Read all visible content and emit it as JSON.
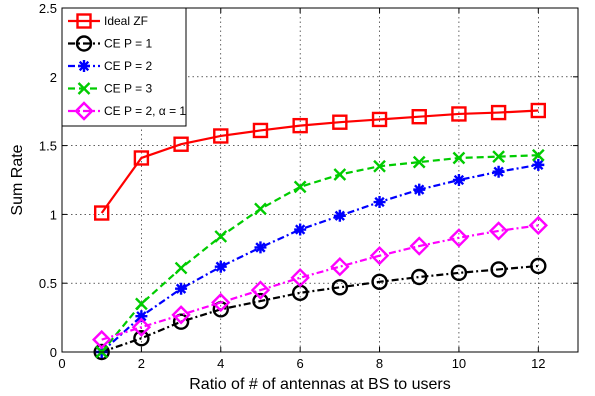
{
  "chart_data": {
    "type": "line",
    "xlabel": "Ratio of # of antennas at BS to users",
    "ylabel": "Sum Rate",
    "xlim": [
      0,
      13
    ],
    "ylim": [
      0,
      2.5
    ],
    "xticks": [
      0,
      2,
      4,
      6,
      8,
      10,
      12
    ],
    "yticks": [
      0,
      0.5,
      1,
      1.5,
      2,
      2.5
    ],
    "xtick_labels": [
      "0",
      "2",
      "4",
      "6",
      "8",
      "10",
      "12"
    ],
    "ytick_labels": [
      "0",
      "0.5",
      "1",
      "1.5",
      "2",
      "2.5"
    ],
    "grid": true,
    "legend_position": "top-left",
    "x": [
      1,
      2,
      3,
      4,
      5,
      6,
      7,
      8,
      9,
      10,
      11,
      12
    ],
    "series": [
      {
        "name": "Ideal ZF",
        "color": "#ff0000",
        "marker": "square",
        "line": "solid",
        "values": [
          1.01,
          1.41,
          1.51,
          1.57,
          1.61,
          1.645,
          1.67,
          1.69,
          1.71,
          1.73,
          1.74,
          1.755
        ]
      },
      {
        "name": "CE P = 1",
        "color": "#000000",
        "marker": "circle",
        "line": "dashdot",
        "values": [
          0.0,
          0.1,
          0.22,
          0.31,
          0.37,
          0.43,
          0.47,
          0.51,
          0.545,
          0.575,
          0.6,
          0.625
        ]
      },
      {
        "name": "CE P = 2",
        "color": "#0000ff",
        "marker": "asterisk",
        "line": "dashdot",
        "values": [
          0.0,
          0.26,
          0.46,
          0.62,
          0.76,
          0.89,
          0.99,
          1.09,
          1.18,
          1.25,
          1.31,
          1.36
        ]
      },
      {
        "name": "CE P = 3",
        "color": "#00cc00",
        "marker": "x",
        "line": "dashed",
        "values": [
          0.0,
          0.35,
          0.61,
          0.84,
          1.04,
          1.2,
          1.29,
          1.35,
          1.38,
          1.41,
          1.42,
          1.43
        ]
      },
      {
        "name": "CE P = 2, α = 1",
        "color": "#ff00ff",
        "marker": "diamond",
        "line": "dashdot",
        "values": [
          0.09,
          0.18,
          0.27,
          0.36,
          0.45,
          0.54,
          0.62,
          0.7,
          0.77,
          0.83,
          0.88,
          0.92
        ]
      }
    ]
  }
}
